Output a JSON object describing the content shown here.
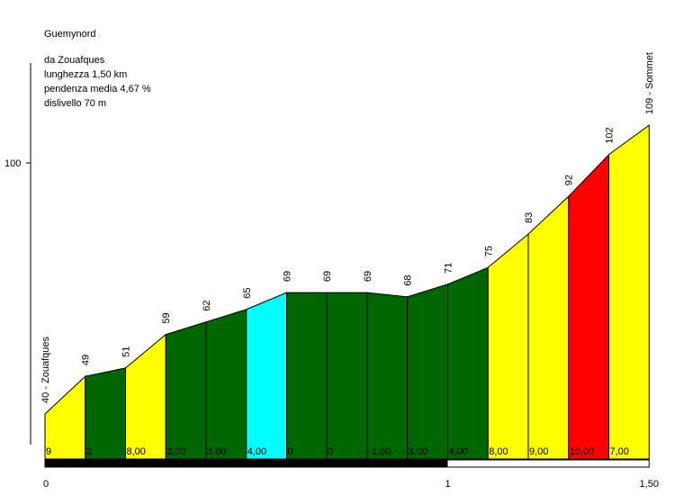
{
  "info": {
    "climb": "Guemynord",
    "from": "da Zouafques",
    "length": "lunghezza 1,50 km",
    "avg_gradient": "pendenza media 4,67 %",
    "elevation_gain": "dislivello 70 m"
  },
  "colors": {
    "yellow": "#ffff00",
    "green": "#006600",
    "cyan": "#00ffff",
    "red": "#ff0000",
    "black": "#000000"
  },
  "chart_data": {
    "type": "area",
    "title": "Guemynord",
    "xlabel": "",
    "ylabel": "",
    "x_ticks": [
      0,
      1,
      1.5
    ],
    "x_tick_labels": [
      "0",
      "1",
      "1,50"
    ],
    "y_ticks": [
      100
    ],
    "y_tick_labels": [
      "100"
    ],
    "points": [
      {
        "km": 0.0,
        "alt": 40,
        "label": "40 - Zouafques"
      },
      {
        "km": 0.1,
        "alt": 49,
        "label": "49"
      },
      {
        "km": 0.2,
        "alt": 51,
        "label": "51"
      },
      {
        "km": 0.3,
        "alt": 59,
        "label": "59"
      },
      {
        "km": 0.4,
        "alt": 62,
        "label": "62"
      },
      {
        "km": 0.5,
        "alt": 65,
        "label": "65"
      },
      {
        "km": 0.6,
        "alt": 69,
        "label": "69"
      },
      {
        "km": 0.7,
        "alt": 69,
        "label": "69"
      },
      {
        "km": 0.8,
        "alt": 69,
        "label": "69"
      },
      {
        "km": 0.9,
        "alt": 68,
        "label": "68"
      },
      {
        "km": 1.0,
        "alt": 71,
        "label": "71"
      },
      {
        "km": 1.1,
        "alt": 75,
        "label": "75"
      },
      {
        "km": 1.2,
        "alt": 83,
        "label": "83"
      },
      {
        "km": 1.3,
        "alt": 92,
        "label": "92"
      },
      {
        "km": 1.4,
        "alt": 102,
        "label": "102"
      },
      {
        "km": 1.5,
        "alt": 109,
        "label": "109 - Sommet"
      }
    ],
    "segments": [
      {
        "gradient": "9",
        "color": "yellow"
      },
      {
        "gradient": "2",
        "color": "green"
      },
      {
        "gradient": "8,00",
        "color": "yellow"
      },
      {
        "gradient": "3,00",
        "color": "green"
      },
      {
        "gradient": "3,00",
        "color": "green"
      },
      {
        "gradient": "4,00",
        "color": "cyan"
      },
      {
        "gradient": "0",
        "color": "green"
      },
      {
        "gradient": "0",
        "color": "green"
      },
      {
        "gradient": "-1,00",
        "color": "green"
      },
      {
        "gradient": "3,00",
        "color": "green"
      },
      {
        "gradient": "4,00",
        "color": "green"
      },
      {
        "gradient": "8,00",
        "color": "yellow"
      },
      {
        "gradient": "9,00",
        "color": "yellow"
      },
      {
        "gradient": "10,00",
        "color": "red"
      },
      {
        "gradient": "7,00",
        "color": "yellow"
      }
    ]
  }
}
